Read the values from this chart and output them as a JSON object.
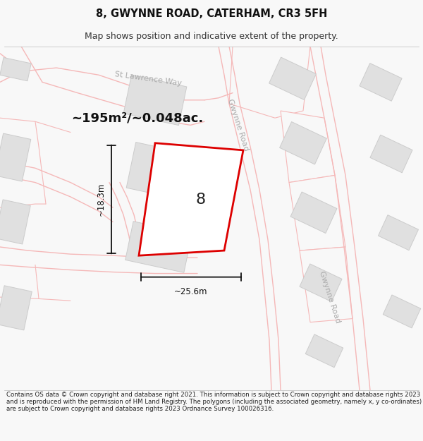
{
  "title_line1": "8, GWYNNE ROAD, CATERHAM, CR3 5FH",
  "title_line2": "Map shows position and indicative extent of the property.",
  "footer_text": "Contains OS data © Crown copyright and database right 2021. This information is subject to Crown copyright and database rights 2023 and is reproduced with the permission of HM Land Registry. The polygons (including the associated geometry, namely x, y co-ordinates) are subject to Crown copyright and database rights 2023 Ordnance Survey 100026316.",
  "area_label": "~195m²/~0.048ac.",
  "plot_number": "8",
  "dim_width": "~25.6m",
  "dim_height": "~18.3m",
  "road_label_upper": "Gwynne Road",
  "road_label_lower": "Gwynne Road",
  "street_label": "St Lawrence Way",
  "background_color": "#f8f8f8",
  "map_bg": "#f8f8f8",
  "building_color": "#e0e0e0",
  "building_edge": "#cccccc",
  "road_line_color": "#f5b8b8",
  "plot_outline_color": "#dd0000",
  "plot_fill_color": "#ffffff",
  "dim_line_color": "#111111",
  "road_label_color": "#aaaaaa",
  "title_fontsize": 10.5,
  "subtitle_fontsize": 9,
  "footer_fontsize": 6.2,
  "area_fontsize": 13,
  "number_fontsize": 16,
  "dim_fontsize": 8.5,
  "road_label_fontsize": 8
}
